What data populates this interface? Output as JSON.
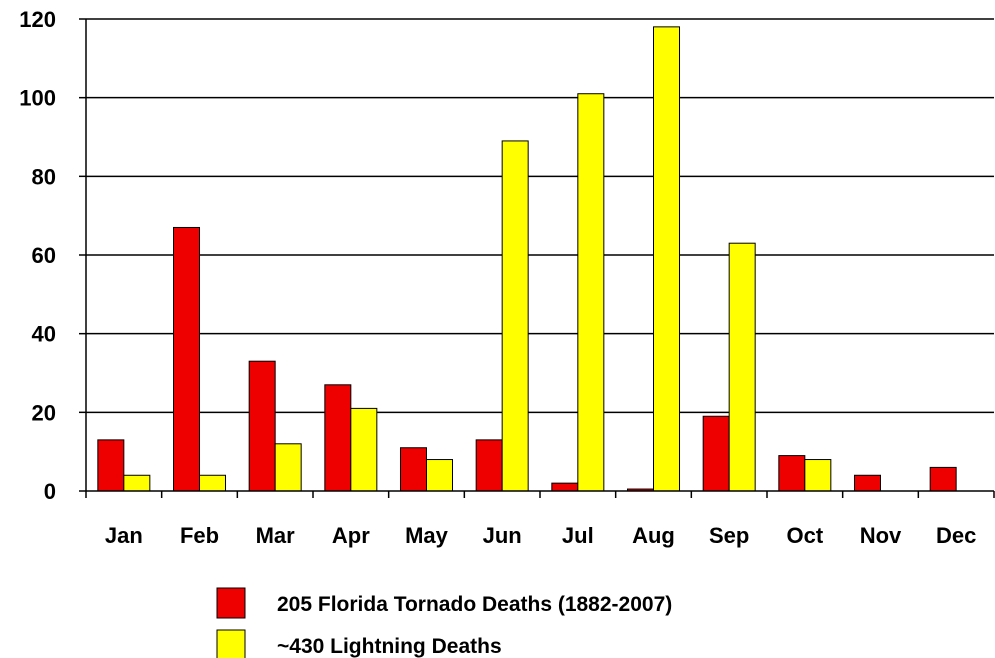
{
  "chart_data": {
    "type": "bar",
    "categories": [
      "Jan",
      "Feb",
      "Mar",
      "Apr",
      "May",
      "Jun",
      "Jul",
      "Aug",
      "Sep",
      "Oct",
      "Nov",
      "Dec"
    ],
    "series": [
      {
        "name": "205 Florida Tornado Deaths (1882-2007)",
        "color": "#ee0000",
        "values": [
          13,
          67,
          33,
          27,
          11,
          13,
          2,
          0.5,
          19,
          9,
          4,
          6
        ]
      },
      {
        "name": "~430 Lightning Deaths",
        "color": "#ffff00",
        "values": [
          4,
          4,
          12,
          21,
          8,
          89,
          101,
          118,
          63,
          8,
          0,
          0
        ]
      }
    ],
    "ylim": [
      0,
      120
    ],
    "yticks": [
      0,
      20,
      40,
      60,
      80,
      100,
      120
    ],
    "grid": true,
    "legend_position": "bottom"
  }
}
